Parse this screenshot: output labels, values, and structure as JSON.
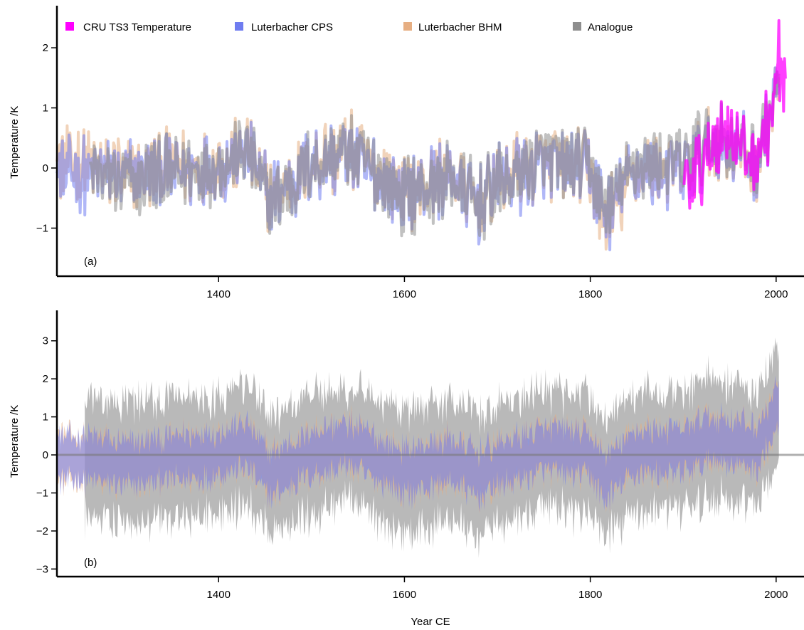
{
  "legend": [
    {
      "label": "CRU TS3 Temperature",
      "color": "#ff00ff"
    },
    {
      "label": "Luterbacher CPS",
      "color": "#6f7cf0"
    },
    {
      "label": "Luterbacher BHM",
      "color": "#e6ae82"
    },
    {
      "label": "Analogue",
      "color": "#8e8e8e"
    }
  ],
  "chart_data": [
    {
      "type": "line",
      "panel_label": "(a)",
      "ylabel": "Temperature /K",
      "xlabel": "",
      "xlim": [
        1226,
        2030
      ],
      "ylim": [
        -1.8,
        2.7
      ],
      "xticks": [
        1400,
        1600,
        1800,
        2000
      ],
      "yticks": [
        -1,
        0,
        1,
        2
      ],
      "ytick_labels": [
        "−1",
        "0",
        "1",
        "2"
      ],
      "grid": false,
      "legend_position": "top",
      "series": [
        {
          "name": "Luterbacher BHM",
          "color": "#e6ae82",
          "x_start": 1226,
          "x_end": 2003,
          "anchors": [
            [
              1230,
              0.1
            ],
            [
              1300,
              -0.1
            ],
            [
              1350,
              0.0
            ],
            [
              1400,
              0.05
            ],
            [
              1430,
              0.3
            ],
            [
              1455,
              -0.5
            ],
            [
              1500,
              0.1
            ],
            [
              1540,
              0.3
            ],
            [
              1600,
              -0.4
            ],
            [
              1650,
              -0.1
            ],
            [
              1680,
              -0.6
            ],
            [
              1700,
              -0.2
            ],
            [
              1750,
              0.1
            ],
            [
              1800,
              -0.05
            ],
            [
              1815,
              -0.9
            ],
            [
              1850,
              0.0
            ],
            [
              1900,
              -0.1
            ],
            [
              1930,
              0.4
            ],
            [
              1960,
              0.3
            ],
            [
              1980,
              0.1
            ],
            [
              2000,
              1.2
            ]
          ]
        },
        {
          "name": "Luterbacher CPS",
          "color": "#6f7cf0",
          "x_start": 1226,
          "x_end": 2003,
          "anchors": [
            [
              1230,
              -0.1
            ],
            [
              1300,
              -0.15
            ],
            [
              1350,
              -0.05
            ],
            [
              1400,
              0.0
            ],
            [
              1430,
              0.3
            ],
            [
              1455,
              -0.55
            ],
            [
              1500,
              0.05
            ],
            [
              1540,
              0.25
            ],
            [
              1600,
              -0.45
            ],
            [
              1650,
              -0.15
            ],
            [
              1680,
              -0.6
            ],
            [
              1700,
              -0.25
            ],
            [
              1750,
              0.05
            ],
            [
              1800,
              -0.05
            ],
            [
              1815,
              -0.8
            ],
            [
              1850,
              0.0
            ],
            [
              1900,
              -0.1
            ],
            [
              1930,
              0.4
            ],
            [
              1960,
              0.3
            ],
            [
              1980,
              0.1
            ],
            [
              2000,
              1.2
            ]
          ]
        },
        {
          "name": "Analogue",
          "color": "#8e8e8e",
          "x_start": 1262,
          "x_end": 2003,
          "anchors": [
            [
              1262,
              -0.1
            ],
            [
              1300,
              -0.3
            ],
            [
              1350,
              -0.1
            ],
            [
              1400,
              0.05
            ],
            [
              1430,
              0.3
            ],
            [
              1455,
              -0.6
            ],
            [
              1500,
              0.05
            ],
            [
              1540,
              0.3
            ],
            [
              1600,
              -0.5
            ],
            [
              1650,
              -0.15
            ],
            [
              1680,
              -0.6
            ],
            [
              1700,
              -0.3
            ],
            [
              1750,
              0.15
            ],
            [
              1800,
              0.0
            ],
            [
              1815,
              -0.7
            ],
            [
              1850,
              0.1
            ],
            [
              1900,
              0.1
            ],
            [
              1930,
              0.5
            ],
            [
              1960,
              0.35
            ],
            [
              1980,
              0.2
            ],
            [
              2000,
              1.3
            ]
          ]
        },
        {
          "name": "CRU TS3 Temperature",
          "color": "#ff00ff",
          "x_start": 1901,
          "x_end": 2010,
          "anchors": [
            [
              1901,
              -0.3
            ],
            [
              1920,
              0.0
            ],
            [
              1935,
              0.5
            ],
            [
              1950,
              0.7
            ],
            [
              1965,
              0.2
            ],
            [
              1980,
              0.2
            ],
            [
              1990,
              0.6
            ],
            [
              2000,
              1.2
            ],
            [
              2003,
              2.0
            ],
            [
              2006,
              1.3
            ],
            [
              2010,
              1.4
            ]
          ]
        }
      ]
    },
    {
      "type": "area",
      "panel_label": "(b)",
      "ylabel": "Temperature /K",
      "xlabel": "Year CE",
      "xlim": [
        1226,
        2030
      ],
      "ylim": [
        -3.2,
        3.8
      ],
      "xticks": [
        1400,
        1600,
        1800,
        2000
      ],
      "yticks": [
        -3,
        -2,
        -1,
        0,
        1,
        2,
        3
      ],
      "ytick_labels": [
        "−3",
        "−2",
        "−1",
        "0",
        "1",
        "2",
        "3"
      ],
      "grid": false,
      "reference_line_y": 0,
      "series": [
        {
          "name": "Analogue",
          "color": "#8e8e8e",
          "x_start": 1256,
          "x_end": 2003,
          "half_width": 1.55,
          "amplitude_scale": 1.0
        },
        {
          "name": "Luterbacher BHM",
          "color": "#e6ae82",
          "x_start": 1226,
          "x_end": 2003,
          "half_width": 0.62,
          "amplitude_scale": 1.0
        },
        {
          "name": "Luterbacher CPS",
          "color": "#6f7cf0",
          "x_start": 1226,
          "x_end": 2003,
          "half_width": 0.58,
          "amplitude_scale": 1.0
        }
      ]
    }
  ]
}
